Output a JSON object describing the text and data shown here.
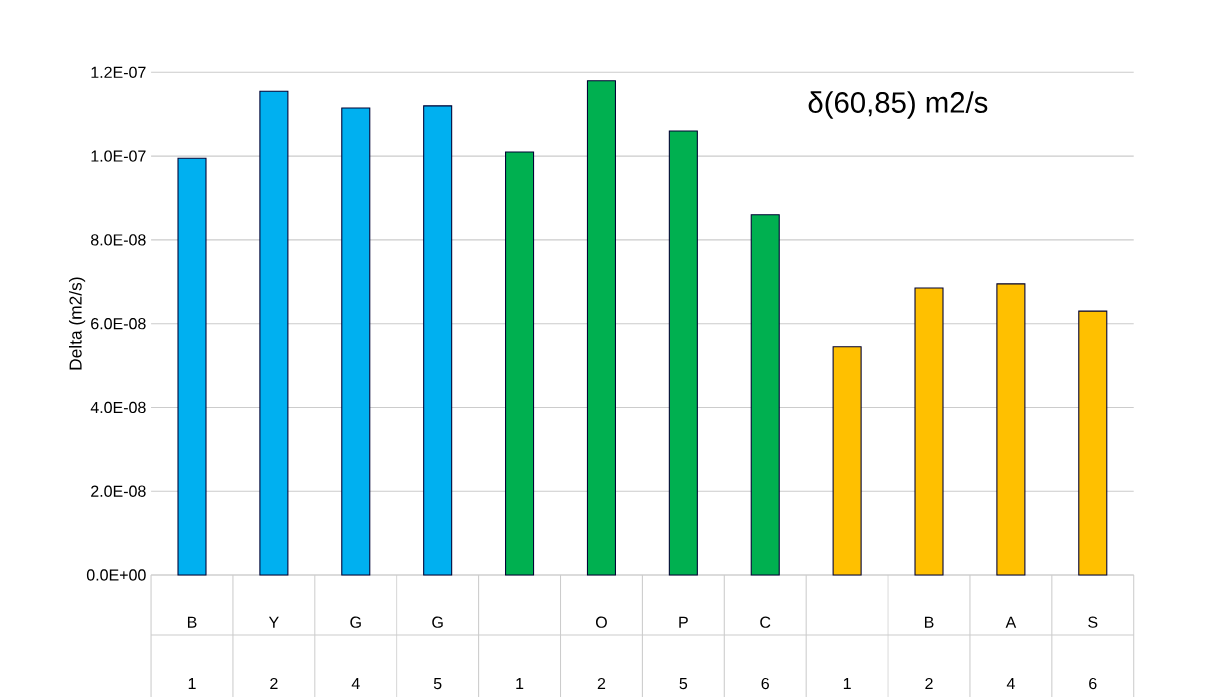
{
  "chart_data": {
    "type": "bar",
    "title": "δ(60,85) m2/s",
    "ylabel": "Delta (m2/s)",
    "categories": [
      "B 1",
      "Y 2",
      "G 4",
      "G 5",
      "1",
      "O 2",
      "P 5",
      "C 6",
      "1",
      "B 2",
      "A 4",
      "S 6"
    ],
    "values": [
      9.95e-08,
      1.155e-07,
      1.115e-07,
      1.12e-07,
      1.01e-07,
      1.18e-07,
      1.06e-07,
      8.6e-08,
      5.45e-08,
      6.85e-08,
      6.95e-08,
      6.3e-08
    ],
    "colors": [
      "#00b0f0",
      "#00b0f0",
      "#00b0f0",
      "#00b0f0",
      "#00b050",
      "#00b050",
      "#00b050",
      "#00b050",
      "#ffc000",
      "#ffc000",
      "#ffc000",
      "#ffc000"
    ],
    "ylim": [
      0,
      1.2e-07
    ],
    "yticks": [
      {
        "value": 0,
        "label": "0.0E+00"
      },
      {
        "value": 2e-08,
        "label": "2.0E-08"
      },
      {
        "value": 4e-08,
        "label": "4.0E-08"
      },
      {
        "value": 6e-08,
        "label": "6.0E-08"
      },
      {
        "value": 8e-08,
        "label": "8.0E-08"
      },
      {
        "value": 1e-07,
        "label": "1.0E-07"
      },
      {
        "value": 1.2e-07,
        "label": "1.2E-07"
      }
    ],
    "grid": "y"
  }
}
